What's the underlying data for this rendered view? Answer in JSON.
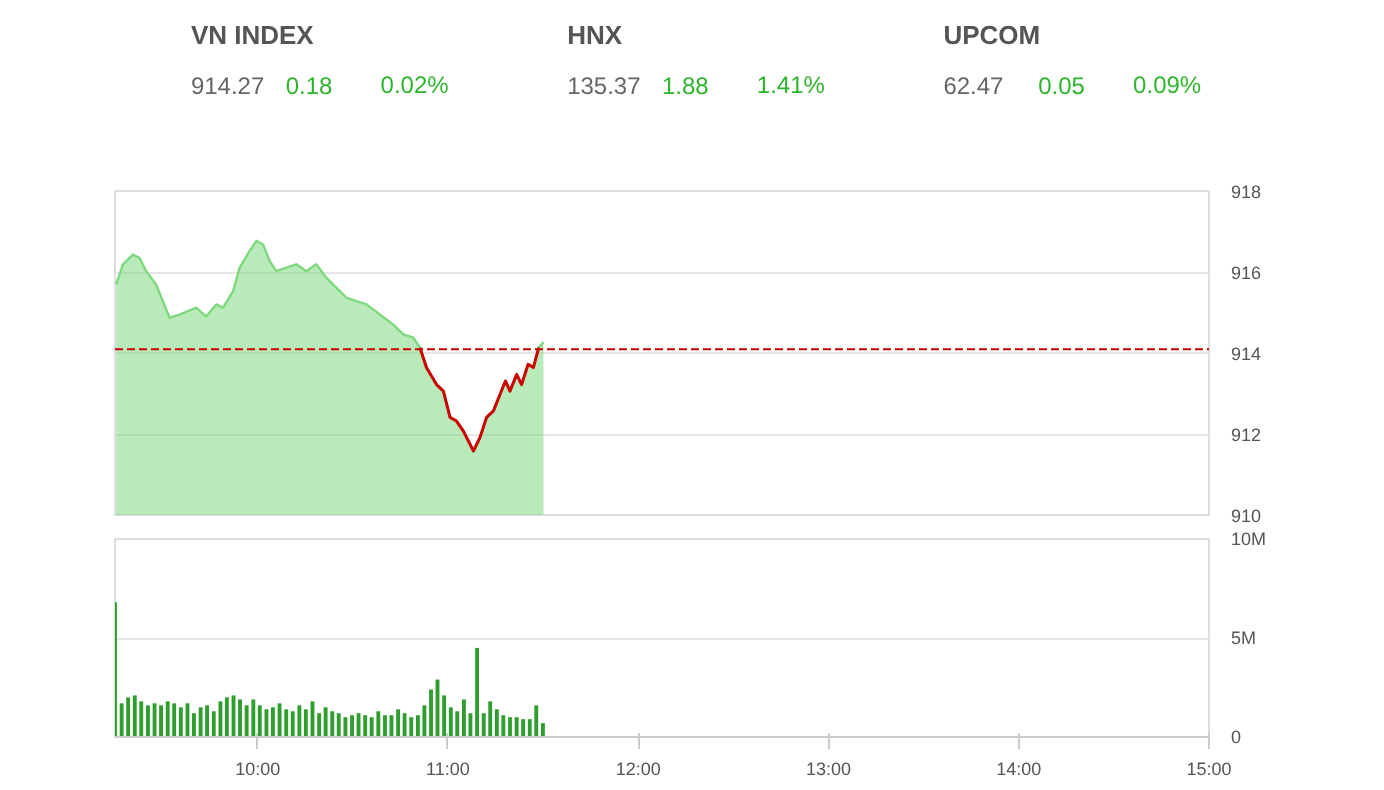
{
  "chart_data": [
    {
      "type": "other",
      "annotations": [
        "VN INDEX",
        "914.27",
        "0.18",
        "0.02%",
        "HNX",
        "135.37",
        "1.88",
        "1.41%",
        "UPCOM",
        "62.47",
        "0.05",
        "0.09%"
      ],
      "colors": [
        "#555555",
        "#666666",
        "#2db52d",
        "#2db52d",
        "#555555",
        "#666666",
        "#2db52d",
        "#2db52d",
        "#555555",
        "#666666",
        "#2db52d",
        "#2db52d"
      ]
    },
    {
      "type": "area",
      "xlim": [
        9.25,
        15
      ],
      "ylim": [
        910,
        918
      ],
      "yticks": [
        910,
        912,
        914,
        916,
        918
      ],
      "xticks": [
        {
          "value": 10,
          "label": null
        },
        {
          "value": 11,
          "label": null
        },
        {
          "value": 12,
          "label": null
        },
        {
          "value": 13,
          "label": null
        },
        {
          "value": 14,
          "label": null
        },
        {
          "value": 15,
          "label": null
        }
      ],
      "tick_labels": "y",
      "grid": "y",
      "ref_lines": [
        {
          "axis": "y",
          "value": 914.09,
          "color": "#cc0000",
          "line_style": "dashed"
        }
      ],
      "series": [
        {
          "type": "area",
          "color": "#7fd87f",
          "x": [
            9.256,
            9.292,
            9.344,
            9.379,
            9.414,
            9.466,
            9.537,
            9.589,
            9.677,
            9.729,
            9.782,
            9.818,
            9.871,
            9.905,
            9.958,
            9.993,
            10.028,
            10.063,
            10.098,
            10.151,
            10.203,
            10.256,
            10.308,
            10.361,
            10.414,
            10.466,
            10.519,
            10.572,
            10.642,
            10.713,
            10.765,
            10.818,
            10.853,
            10.887,
            10.94,
            10.976,
            11.011,
            11.045,
            11.081,
            11.134,
            11.168,
            11.203,
            11.239,
            11.274,
            11.302,
            11.326,
            11.361,
            11.387,
            11.421,
            11.449,
            11.477,
            11.502
          ],
          "values": [
            915.69,
            916.19,
            916.43,
            916.35,
            916.02,
            915.69,
            914.87,
            914.95,
            915.12,
            914.9,
            915.2,
            915.12,
            915.53,
            916.11,
            916.52,
            916.77,
            916.68,
            916.27,
            916.02,
            916.11,
            916.19,
            916.02,
            916.19,
            915.86,
            915.61,
            915.37,
            915.28,
            915.2,
            914.95,
            914.7,
            914.46,
            914.38,
            914.13,
            913.64,
            913.22,
            913.06,
            912.41,
            912.32,
            912.07,
            911.58,
            911.91,
            912.41,
            912.57,
            912.98,
            913.31,
            913.06,
            913.47,
            913.22,
            913.72,
            913.64,
            914.13,
            914.27
          ]
        },
        {
          "type": "line",
          "color": "#cc0000",
          "x": [
            10.853,
            10.887,
            10.94,
            10.976,
            11.011,
            11.045,
            11.081,
            11.134,
            11.168,
            11.203,
            11.239,
            11.274,
            11.302,
            11.326,
            11.361,
            11.387,
            11.421,
            11.449,
            11.477
          ],
          "values": [
            914.13,
            913.64,
            913.22,
            913.06,
            912.41,
            912.32,
            912.07,
            911.58,
            911.91,
            912.41,
            912.57,
            912.98,
            913.31,
            913.06,
            913.47,
            913.22,
            913.72,
            913.64,
            914.13
          ]
        }
      ]
    },
    {
      "type": "bar",
      "color": "#2e9e2e",
      "xlim": [
        9.25,
        15
      ],
      "ylim": [
        0,
        10
      ],
      "yticks": [
        0,
        {
          "value": 5,
          "label": "5M"
        },
        {
          "value": 10,
          "label": "10M"
        }
      ],
      "xticks": [
        {
          "value": 10,
          "label": "10:00"
        },
        {
          "value": 11,
          "label": "11:00"
        },
        {
          "value": 12,
          "label": "12:00"
        },
        {
          "value": 13,
          "label": "13:00"
        },
        {
          "value": 14,
          "label": "14:00"
        },
        {
          "value": 15,
          "label": "15:00"
        }
      ],
      "grid": "y",
      "x": [
        9.25,
        9.285,
        9.319,
        9.354,
        9.388,
        9.423,
        9.458,
        9.492,
        9.527,
        9.561,
        9.596,
        9.631,
        9.665,
        9.7,
        9.734,
        9.769,
        9.804,
        9.838,
        9.873,
        9.907,
        9.942,
        9.977,
        10.011,
        10.046,
        10.08,
        10.115,
        10.15,
        10.184,
        10.219,
        10.253,
        10.288,
        10.323,
        10.357,
        10.392,
        10.426,
        10.461,
        10.496,
        10.53,
        10.565,
        10.599,
        10.634,
        10.669,
        10.703,
        10.738,
        10.772,
        10.807,
        10.842,
        10.876,
        10.911,
        10.945,
        10.98,
        11.015,
        11.049,
        11.084,
        11.118,
        11.153,
        11.188,
        11.222,
        11.257,
        11.291,
        11.326,
        11.361,
        11.395,
        11.43,
        11.464,
        11.499
      ],
      "values": [
        6.8,
        1.7,
        2.0,
        2.1,
        1.8,
        1.6,
        1.7,
        1.6,
        1.8,
        1.7,
        1.5,
        1.7,
        1.2,
        1.5,
        1.6,
        1.3,
        1.8,
        2.0,
        2.1,
        1.9,
        1.6,
        1.9,
        1.6,
        1.4,
        1.5,
        1.7,
        1.4,
        1.3,
        1.6,
        1.4,
        1.8,
        1.2,
        1.5,
        1.3,
        1.2,
        1.0,
        1.1,
        1.2,
        1.1,
        1.0,
        1.3,
        1.1,
        1.1,
        1.4,
        1.2,
        1.0,
        1.1,
        1.6,
        2.4,
        2.9,
        2.1,
        1.5,
        1.3,
        1.9,
        1.2,
        4.5,
        1.2,
        1.8,
        1.4,
        1.1,
        1.0,
        1.0,
        0.9,
        0.9,
        1.6,
        0.7
      ]
    }
  ]
}
